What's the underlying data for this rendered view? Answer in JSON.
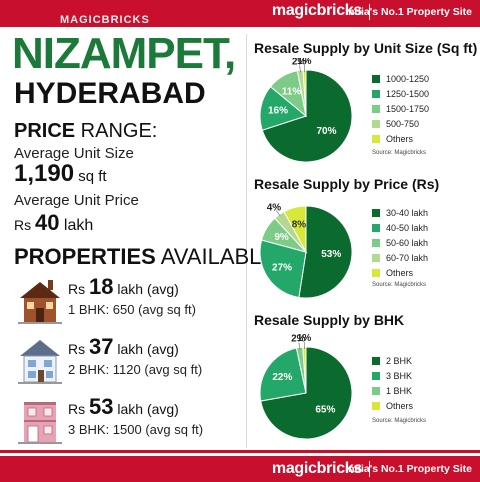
{
  "header": {
    "brand": "magicbricks",
    "tagline": "India's No.1 Property Site",
    "watermark": "MAGICBRICKS"
  },
  "location": {
    "line1": "NIZAMPET,",
    "line2": "HYDERABAD"
  },
  "price_range": {
    "label_bold": "PRICE",
    "label_rest": " RANGE:",
    "avg_unit_size_label": "Average Unit Size",
    "avg_unit_size_value": "1,190",
    "avg_unit_size_unit": " sq ft",
    "avg_unit_price_label": "Average Unit Price",
    "avg_unit_price_currency": "Rs ",
    "avg_unit_price_value": "40",
    "avg_unit_price_unit": " lakh"
  },
  "properties": {
    "title_bold": "PROPERTIES",
    "title_rest": " AVAILABLE",
    "items": [
      {
        "currency": "Rs ",
        "value": "18",
        "unit": " lakh (avg)",
        "detail": "1 BHK: 650 (avg sq ft)",
        "icon": "house-brown-icon"
      },
      {
        "currency": "Rs ",
        "value": "37",
        "unit": " lakh (avg)",
        "detail": "2 BHK: 1120 (avg sq ft)",
        "icon": "house-blue-icon"
      },
      {
        "currency": "Rs ",
        "value": "53",
        "unit": " lakh (avg)",
        "detail": "3 BHK: 1500 (avg sq ft)",
        "icon": "house-pink-icon"
      }
    ]
  },
  "chart_data": [
    {
      "type": "pie",
      "title": "Resale Supply by Unit Size (Sq ft)",
      "categories": [
        "1000-1250",
        "1250-1500",
        "1500-1750",
        "500-750",
        "Others"
      ],
      "values": [
        70,
        16,
        11,
        2,
        1
      ],
      "labels": [
        "70%",
        "16%",
        "11%",
        "2%",
        "1%"
      ],
      "colors": [
        "#0b6b2e",
        "#23a86a",
        "#7ccb87",
        "#b3d98f",
        "#d8e83a"
      ],
      "source": "Source: Magicbricks"
    },
    {
      "type": "pie",
      "title": "Resale Supply by Price (Rs)",
      "categories": [
        "30-40 lakh",
        "40-50 lakh",
        "50-60 lakh",
        "60-70 lakh",
        "Others"
      ],
      "values": [
        53,
        27,
        9,
        4,
        8
      ],
      "labels": [
        "53%",
        "27%",
        "9%",
        "4%",
        "8%"
      ],
      "colors": [
        "#0b6b2e",
        "#23a86a",
        "#7ccb87",
        "#b3d98f",
        "#d8e83a"
      ],
      "source": "Source: Magicbricks"
    },
    {
      "type": "pie",
      "title": "Resale Supply by BHK",
      "categories": [
        "2 BHK",
        "3 BHK",
        "1 BHK",
        "Others"
      ],
      "values": [
        65,
        22,
        2,
        1
      ],
      "labels": [
        "65%",
        "22%",
        "2%",
        "1%"
      ],
      "colors": [
        "#0b6b2e",
        "#23a86a",
        "#7ccb87",
        "#d8e83a"
      ],
      "source": "Source: Magicbricks"
    }
  ],
  "footer": {
    "brand": "magicbricks",
    "tagline": "India's No.1 Property Site"
  }
}
